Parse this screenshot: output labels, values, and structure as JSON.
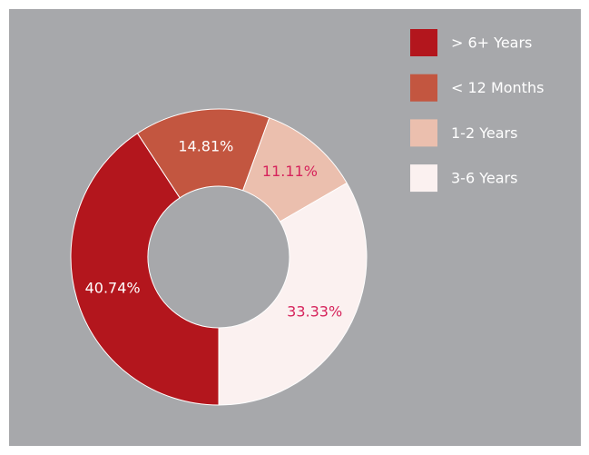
{
  "chart_data": {
    "type": "donut",
    "categories": [
      "> 6+ Years",
      "< 12 Months",
      "1-2 Years",
      "3-6 Years"
    ],
    "values": [
      40.74,
      14.81,
      11.11,
      33.33
    ],
    "value_labels": [
      "40.74%",
      "14.81%",
      "11.11%",
      "33.33%"
    ],
    "colors": [
      "#b3161d",
      "#c35640",
      "#ebbfae",
      "#fbf1f0"
    ],
    "label_colors": [
      "#ffffff",
      "#ffffff",
      "#d6245c",
      "#d6245c"
    ],
    "legend": "top-right"
  }
}
